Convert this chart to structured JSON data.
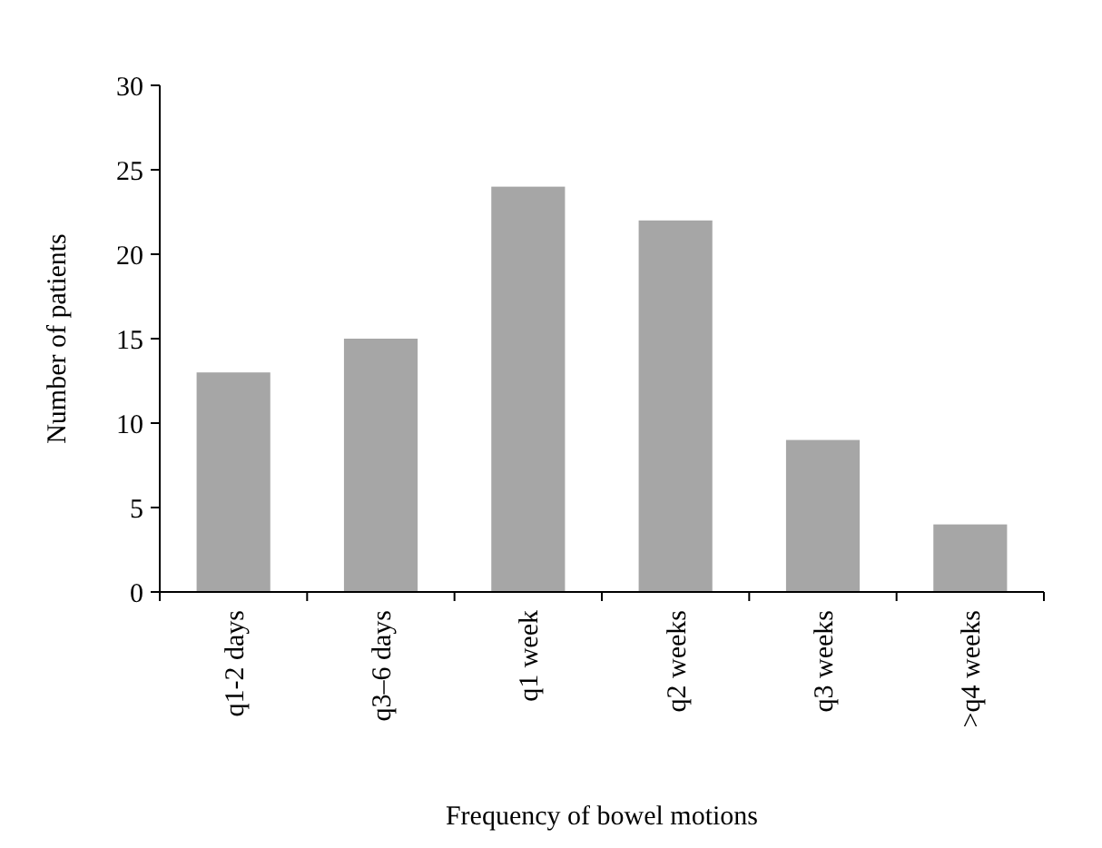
{
  "chart_data": {
    "type": "bar",
    "xlabel": "Frequency of bowel motions",
    "ylabel": "Number of patients",
    "categories": [
      "q1-2 days",
      "q3–6 days",
      "q1 week",
      "q2 weeks",
      "q3 weeks",
      ">q4 weeks"
    ],
    "values": [
      13,
      15,
      24,
      22,
      9,
      4
    ],
    "color": "#a6a6a6",
    "ylim": [
      0,
      30
    ],
    "yticks": [
      0,
      5,
      10,
      15,
      20,
      25,
      30
    ],
    "grid": false
  }
}
